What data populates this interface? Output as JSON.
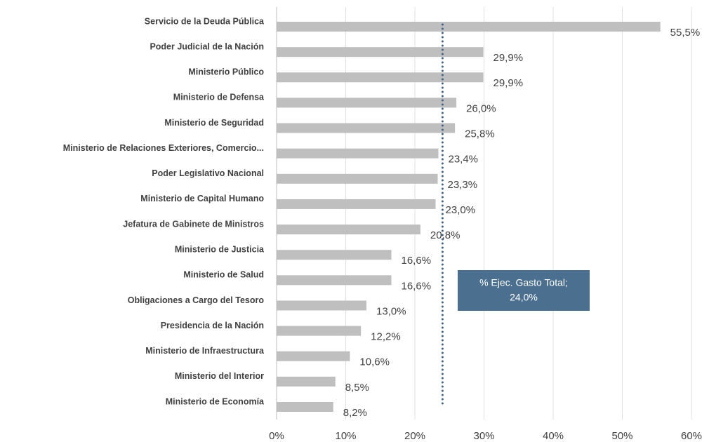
{
  "chart_data": {
    "type": "barh",
    "categories": [
      "Servicio de la Deuda Pública",
      "Poder Judicial de la Nación",
      "Ministerio Público",
      "Ministerio de Defensa",
      "Ministerio de Seguridad",
      "Ministerio de Relaciones Exteriores, Comercio...",
      "Poder Legislativo Nacional",
      "Ministerio de Capital Humano",
      "Jefatura de Gabinete de Ministros",
      "Ministerio de Justicia",
      "Ministerio de Salud",
      "Obligaciones a Cargo del Tesoro",
      "Presidencia de la Nación",
      "Ministerio de Infraestructura",
      "Ministerio del Interior",
      "Ministerio de Economía"
    ],
    "values": [
      55.5,
      29.9,
      29.9,
      26.0,
      25.8,
      23.4,
      23.3,
      23.0,
      20.8,
      16.6,
      16.6,
      13.0,
      12.2,
      10.6,
      8.5,
      8.2
    ],
    "value_labels": [
      "55,5%",
      "29,9%",
      "29,9%",
      "26,0%",
      "25,8%",
      "23,4%",
      "23,3%",
      "23,0%",
      "20,8%",
      "16,6%",
      "16,6%",
      "13,0%",
      "12,2%",
      "10,6%",
      "8,5%",
      "8,2%"
    ],
    "color": "#bfbfbf",
    "xlim": [
      0,
      60
    ],
    "xticks": [
      {
        "value": 0,
        "label": "0%"
      },
      {
        "value": 10,
        "label": "10%"
      },
      {
        "value": 20,
        "label": "20%"
      },
      {
        "value": 30,
        "label": "30%"
      },
      {
        "value": 40,
        "label": "40%"
      },
      {
        "value": 50,
        "label": "50%"
      },
      {
        "value": 60,
        "label": "60%"
      }
    ],
    "grid": true,
    "reference_line": {
      "value": 24,
      "color": "#3e6283",
      "label": [
        "% Ejec. Gasto Total;",
        "24,0%"
      ]
    }
  }
}
